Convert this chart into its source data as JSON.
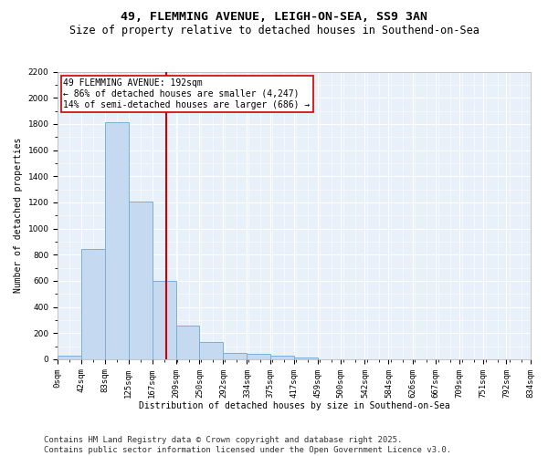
{
  "title": "49, FLEMMING AVENUE, LEIGH-ON-SEA, SS9 3AN",
  "subtitle": "Size of property relative to detached houses in Southend-on-Sea",
  "xlabel": "Distribution of detached houses by size in Southend-on-Sea",
  "ylabel": "Number of detached properties",
  "bar_color": "#c5d9f0",
  "bar_edge_color": "#7bafd4",
  "bg_color": "#e8f0fa",
  "grid_color": "#ffffff",
  "vline_color": "#cc0000",
  "vline_x": 192,
  "annotation_text": "49 FLEMMING AVENUE: 192sqm\n← 86% of detached houses are smaller (4,247)\n14% of semi-detached houses are larger (686) →",
  "annotation_box_color": "#ffffff",
  "annotation_box_edge": "#cc0000",
  "bins": [
    0,
    42,
    83,
    125,
    167,
    209,
    250,
    292,
    334,
    375,
    417,
    459,
    500,
    542,
    584,
    626,
    667,
    709,
    751,
    792,
    834
  ],
  "bar_heights": [
    25,
    845,
    1810,
    1205,
    600,
    255,
    130,
    50,
    40,
    25,
    15,
    0,
    0,
    0,
    0,
    0,
    0,
    0,
    0,
    0
  ],
  "ylim": [
    0,
    2200
  ],
  "yticks": [
    0,
    200,
    400,
    600,
    800,
    1000,
    1200,
    1400,
    1600,
    1800,
    2000,
    2200
  ],
  "footer": "Contains HM Land Registry data © Crown copyright and database right 2025.\nContains public sector information licensed under the Open Government Licence v3.0.",
  "footer_fontsize": 6.5,
  "title_fontsize": 9.5,
  "subtitle_fontsize": 8.5,
  "axis_fontsize": 7,
  "tick_fontsize": 6.5,
  "annot_fontsize": 7
}
